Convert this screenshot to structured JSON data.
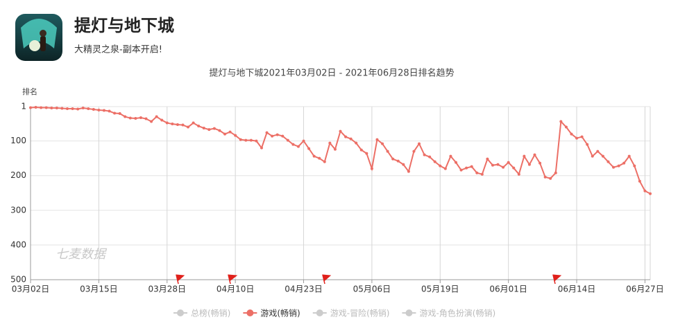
{
  "header": {
    "title": "提灯与地下城",
    "subtitle": "大精灵之泉-副本开启!"
  },
  "chart_data": {
    "type": "line",
    "title": "提灯与地下城2021年03月02日 - 2021年06月28日排名趋势",
    "y_label": "排名",
    "watermark": "七麦数据",
    "y_inverted": true,
    "grid": true,
    "ylim": [
      1,
      500
    ],
    "yticks": [
      1,
      100,
      200,
      300,
      400,
      500
    ],
    "categories": [
      "03月02日",
      null,
      null,
      null,
      null,
      null,
      null,
      null,
      null,
      null,
      null,
      null,
      null,
      "03月15日",
      null,
      null,
      null,
      null,
      null,
      null,
      null,
      null,
      null,
      null,
      null,
      null,
      "03月28日",
      null,
      null,
      null,
      null,
      null,
      null,
      null,
      null,
      null,
      null,
      null,
      null,
      "04月10日",
      null,
      null,
      null,
      null,
      null,
      null,
      null,
      null,
      null,
      null,
      null,
      null,
      "04月23日",
      null,
      null,
      null,
      null,
      null,
      null,
      null,
      null,
      null,
      null,
      null,
      null,
      "05月06日",
      null,
      null,
      null,
      null,
      null,
      null,
      null,
      null,
      null,
      null,
      null,
      null,
      "05月19日",
      null,
      null,
      null,
      null,
      null,
      null,
      null,
      null,
      null,
      null,
      null,
      null,
      "06月01日",
      null,
      null,
      null,
      null,
      null,
      null,
      null,
      null,
      null,
      null,
      null,
      null,
      "06月14日",
      null,
      null,
      null,
      null,
      null,
      null,
      null,
      null,
      null,
      null,
      null,
      null,
      "06月27日",
      null
    ],
    "legend": [
      "总榜(畅销)",
      "游戏(畅销)",
      "游戏-冒险(畅销)",
      "游戏-角色扮演(畅销)"
    ],
    "series": [
      {
        "name": "游戏(畅销)",
        "color": "#ec6f66",
        "values": [
          4,
          3,
          4,
          4,
          5,
          5,
          6,
          7,
          7,
          8,
          5,
          7,
          9,
          11,
          12,
          14,
          20,
          21,
          30,
          34,
          35,
          33,
          36,
          44,
          30,
          40,
          48,
          51,
          53,
          54,
          60,
          48,
          57,
          63,
          67,
          64,
          70,
          80,
          74,
          84,
          96,
          98,
          98,
          100,
          120,
          76,
          86,
          82,
          86,
          98,
          110,
          116,
          100,
          122,
          144,
          150,
          160,
          106,
          124,
          72,
          88,
          94,
          106,
          126,
          136,
          180,
          96,
          108,
          130,
          152,
          158,
          168,
          188,
          130,
          108,
          140,
          146,
          160,
          172,
          180,
          144,
          162,
          184,
          178,
          174,
          192,
          196,
          152,
          170,
          168,
          176,
          162,
          178,
          196,
          144,
          168,
          140,
          164,
          204,
          208,
          192,
          44,
          60,
          80,
          92,
          88,
          110,
          144,
          130,
          144,
          160,
          176,
          172,
          164,
          144,
          172,
          216,
          244,
          252
        ]
      }
    ]
  }
}
